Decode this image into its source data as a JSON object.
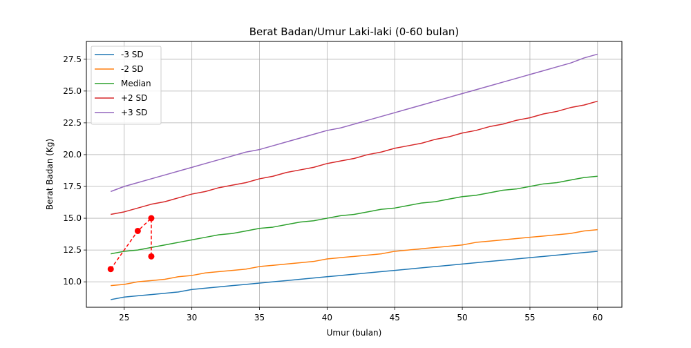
{
  "chart_data": {
    "type": "line",
    "title": "Berat Badan/Umur Laki-laki (0-60 bulan)",
    "xlabel": "Umur (bulan)",
    "ylabel": "Berat Badan (Kg)",
    "xlim": [
      22.2,
      61.8
    ],
    "ylim": [
      8.0,
      28.9
    ],
    "xticks": [
      25,
      30,
      35,
      40,
      45,
      50,
      55,
      60
    ],
    "yticks": [
      10.0,
      12.5,
      15.0,
      17.5,
      20.0,
      22.5,
      25.0,
      27.5
    ],
    "xtick_labels": [
      "25",
      "30",
      "35",
      "40",
      "45",
      "50",
      "55",
      "60"
    ],
    "ytick_labels": [
      "10.0",
      "12.5",
      "15.0",
      "17.5",
      "20.0",
      "22.5",
      "25.0",
      "27.5"
    ],
    "grid": true,
    "legend_position": "top-left",
    "x": [
      24,
      25,
      26,
      27,
      28,
      29,
      30,
      31,
      32,
      33,
      34,
      35,
      36,
      37,
      38,
      39,
      40,
      41,
      42,
      43,
      44,
      45,
      46,
      47,
      48,
      49,
      50,
      51,
      52,
      53,
      54,
      55,
      56,
      57,
      58,
      59,
      60
    ],
    "series": [
      {
        "name": "-3 SD",
        "color": "#1f77b4",
        "style": "solid",
        "values": [
          8.6,
          8.8,
          8.9,
          9.0,
          9.1,
          9.2,
          9.4,
          9.5,
          9.6,
          9.7,
          9.8,
          9.9,
          10.0,
          10.1,
          10.2,
          10.3,
          10.4,
          10.5,
          10.6,
          10.7,
          10.8,
          10.9,
          11.0,
          11.1,
          11.2,
          11.3,
          11.4,
          11.5,
          11.6,
          11.7,
          11.8,
          11.9,
          12.0,
          12.1,
          12.2,
          12.3,
          12.4
        ]
      },
      {
        "name": "-2 SD",
        "color": "#ff7f0e",
        "style": "solid",
        "values": [
          9.7,
          9.8,
          10.0,
          10.1,
          10.2,
          10.4,
          10.5,
          10.7,
          10.8,
          10.9,
          11.0,
          11.2,
          11.3,
          11.4,
          11.5,
          11.6,
          11.8,
          11.9,
          12.0,
          12.1,
          12.2,
          12.4,
          12.5,
          12.6,
          12.7,
          12.8,
          12.9,
          13.1,
          13.2,
          13.3,
          13.4,
          13.5,
          13.6,
          13.7,
          13.8,
          14.0,
          14.1
        ]
      },
      {
        "name": "Median",
        "color": "#2ca02c",
        "style": "solid",
        "values": [
          12.2,
          12.4,
          12.5,
          12.7,
          12.9,
          13.1,
          13.3,
          13.5,
          13.7,
          13.8,
          14.0,
          14.2,
          14.3,
          14.5,
          14.7,
          14.8,
          15.0,
          15.2,
          15.3,
          15.5,
          15.7,
          15.8,
          16.0,
          16.2,
          16.3,
          16.5,
          16.7,
          16.8,
          17.0,
          17.2,
          17.3,
          17.5,
          17.7,
          17.8,
          18.0,
          18.2,
          18.3
        ]
      },
      {
        "name": "+2 SD",
        "color": "#d62728",
        "style": "solid",
        "values": [
          15.3,
          15.5,
          15.8,
          16.1,
          16.3,
          16.6,
          16.9,
          17.1,
          17.4,
          17.6,
          17.8,
          18.1,
          18.3,
          18.6,
          18.8,
          19.0,
          19.3,
          19.5,
          19.7,
          20.0,
          20.2,
          20.5,
          20.7,
          20.9,
          21.2,
          21.4,
          21.7,
          21.9,
          22.2,
          22.4,
          22.7,
          22.9,
          23.2,
          23.4,
          23.7,
          23.9,
          24.2
        ]
      },
      {
        "name": "+3 SD",
        "color": "#9467bd",
        "style": "solid",
        "values": [
          17.1,
          17.5,
          17.8,
          18.1,
          18.4,
          18.7,
          19.0,
          19.3,
          19.6,
          19.9,
          20.2,
          20.4,
          20.7,
          21.0,
          21.3,
          21.6,
          21.9,
          22.1,
          22.4,
          22.7,
          23.0,
          23.3,
          23.6,
          23.9,
          24.2,
          24.5,
          24.8,
          25.1,
          25.4,
          25.7,
          26.0,
          26.3,
          26.6,
          26.9,
          27.2,
          27.6,
          27.9
        ]
      }
    ],
    "measurements": {
      "color": "#ff0000",
      "style": "dashed",
      "marker": "circle",
      "points": [
        [
          24,
          11.0
        ],
        [
          26,
          14.0
        ],
        [
          27,
          15.0
        ],
        [
          27,
          12.0
        ]
      ]
    }
  }
}
